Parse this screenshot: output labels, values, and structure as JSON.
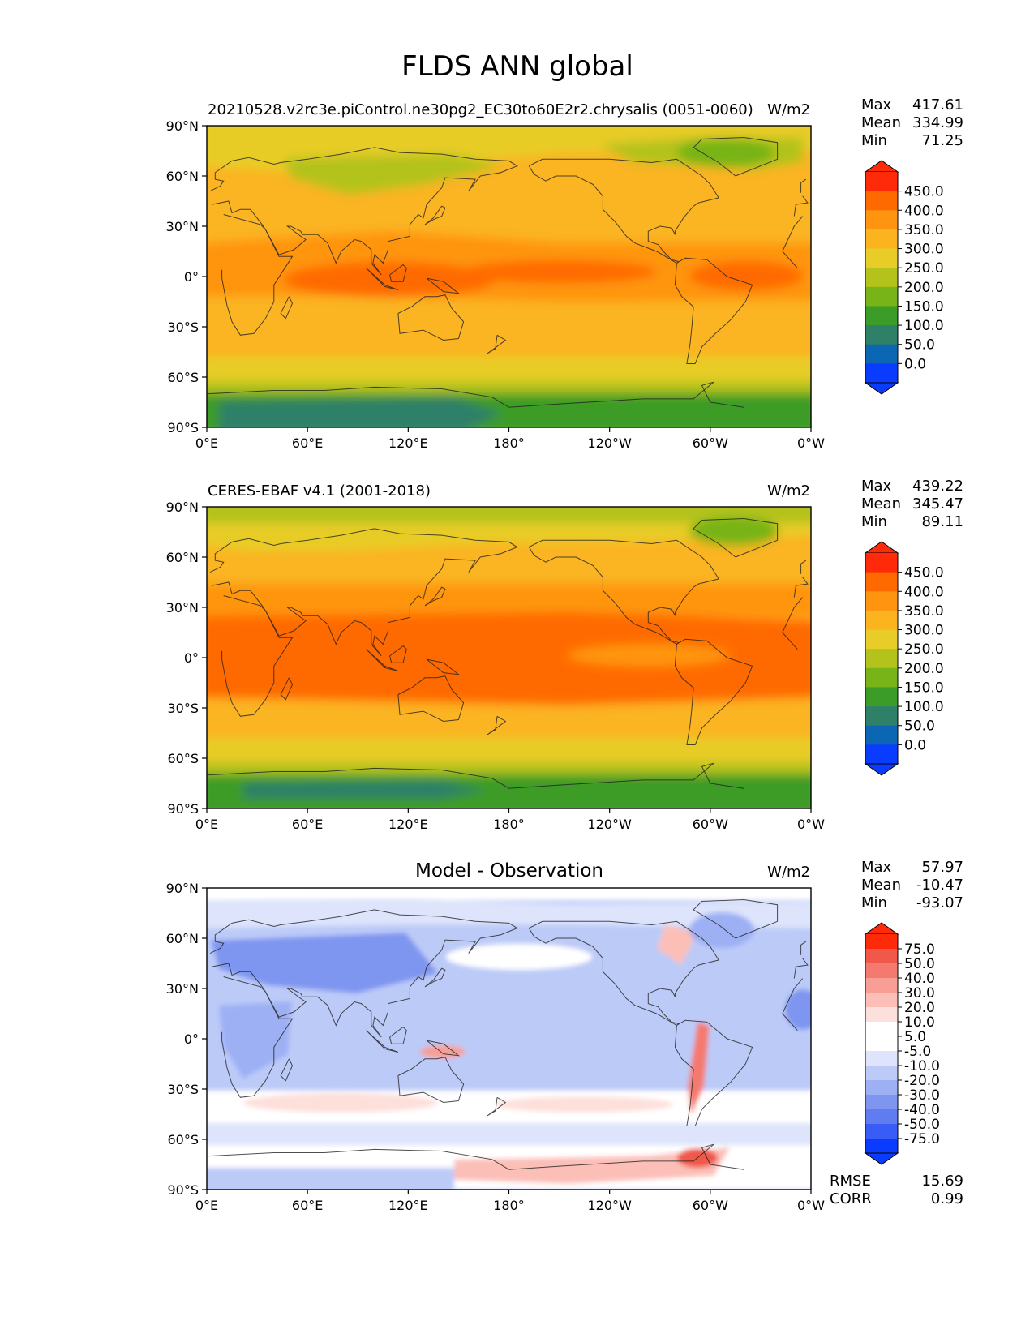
{
  "title": "FLDS ANN global",
  "panels": [
    {
      "left_title": "20210528.v2rc3e.piControl.ne30pg2_EC30to60E2r2.chrysalis (0051-0060)",
      "right_title": "W/m2",
      "stats": [
        {
          "label": "Max",
          "value": "417.61"
        },
        {
          "label": "Mean",
          "value": "334.99"
        },
        {
          "label": "Min",
          "value": "71.25"
        }
      ],
      "colorbar": {
        "ticks": [
          "450.0",
          "400.0",
          "350.0",
          "300.0",
          "250.0",
          "200.0",
          "150.0",
          "100.0",
          "50.0",
          "0.0"
        ],
        "colors": [
          "#ff2a0a",
          "#ff6a00",
          "#ff9410",
          "#fbb420",
          "#e8cc28",
          "#b4c21c",
          "#78b418",
          "#3c9c28",
          "#2e8068",
          "#0b66b4",
          "#0a3cff"
        ],
        "extend": "both"
      }
    },
    {
      "left_title": "CERES-EBAF v4.1 (2001-2018)",
      "right_title": "W/m2",
      "stats": [
        {
          "label": "Max",
          "value": "439.22"
        },
        {
          "label": "Mean",
          "value": "345.47"
        },
        {
          "label": "Min",
          "value": "89.11"
        }
      ],
      "colorbar": {
        "ticks": [
          "450.0",
          "400.0",
          "350.0",
          "300.0",
          "250.0",
          "200.0",
          "150.0",
          "100.0",
          "50.0",
          "0.0"
        ],
        "colors": [
          "#ff2a0a",
          "#ff6a00",
          "#ff9410",
          "#fbb420",
          "#e8cc28",
          "#b4c21c",
          "#78b418",
          "#3c9c28",
          "#2e8068",
          "#0b66b4",
          "#0a3cff"
        ],
        "extend": "both"
      }
    },
    {
      "center_title": "Model - Observation",
      "right_title": "W/m2",
      "stats": [
        {
          "label": "Max",
          "value": "57.97"
        },
        {
          "label": "Mean",
          "value": "-10.47"
        },
        {
          "label": "Min",
          "value": "-93.07"
        }
      ],
      "extra_stats": [
        {
          "label": "RMSE",
          "value": "15.69"
        },
        {
          "label": "CORR",
          "value": "0.99"
        }
      ],
      "colorbar": {
        "ticks": [
          "75.0",
          "50.0",
          "40.0",
          "30.0",
          "20.0",
          "10.0",
          "5.0",
          "-5.0",
          "-10.0",
          "-20.0",
          "-30.0",
          "-40.0",
          "-50.0",
          "-75.0"
        ],
        "colors": [
          "#ff2a0a",
          "#f0584a",
          "#f47a70",
          "#f89e94",
          "#fbbfb8",
          "#fde0dc",
          "#ffffff",
          "#ffffff",
          "#dde4fb",
          "#bccaf8",
          "#9db0f4",
          "#7f96f0",
          "#5f7cf0",
          "#3a5cf6",
          "#0a3cff"
        ],
        "extend": "both"
      }
    }
  ],
  "axes": {
    "lat_ticks": [
      "90°N",
      "60°N",
      "30°N",
      "0°",
      "30°S",
      "60°S",
      "90°S"
    ],
    "lon_ticks": [
      "0°E",
      "60°E",
      "120°E",
      "180°",
      "120°W",
      "60°W",
      "0°W"
    ]
  },
  "chart_data": {
    "type": "heatmap",
    "title": "FLDS ANN global",
    "projection": "PlateCarree",
    "maps": [
      {
        "name": "20210528.v2rc3e.piControl.ne30pg2_EC30to60E2r2.chrysalis (0051-0060)",
        "units": "W/m2",
        "max": 417.61,
        "mean": 334.99,
        "min": 71.25
      },
      {
        "name": "CERES-EBAF v4.1 (2001-2018)",
        "units": "W/m2",
        "max": 439.22,
        "mean": 345.47,
        "min": 89.11
      },
      {
        "name": "Model - Observation",
        "units": "W/m2",
        "max": 57.97,
        "mean": -10.47,
        "min": -93.07,
        "rmse": 15.69,
        "corr": 0.99
      }
    ],
    "levels_abs": [
      0,
      50,
      100,
      150,
      200,
      250,
      300,
      350,
      400,
      450
    ],
    "levels_diff": [
      -75,
      -50,
      -40,
      -30,
      -20,
      -10,
      -5,
      5,
      10,
      20,
      30,
      40,
      50,
      75
    ],
    "lon_range": [
      0,
      360
    ],
    "lat_range": [
      -90,
      90
    ]
  }
}
